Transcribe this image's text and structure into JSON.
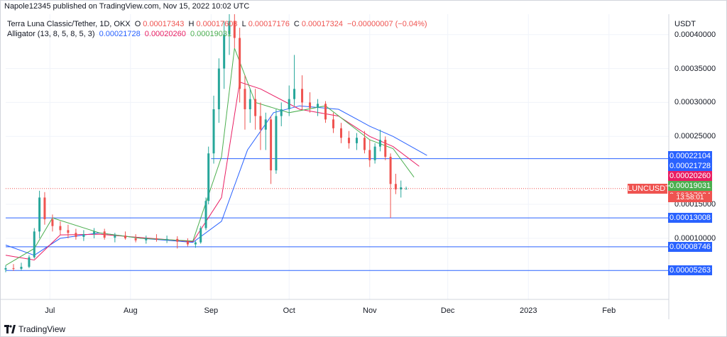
{
  "header": {
    "published": "Napole12345 published on TradingView.com, Nov 15, 2022 10:02 UTC"
  },
  "legend": {
    "symbol": "Terra Luna Classic/Tether, 1D, OKX",
    "open_label": "O",
    "open": "0.00017343",
    "high_label": "H",
    "high": "0.00017603",
    "low_label": "L",
    "low": "0.00017176",
    "close_label": "C",
    "close": "0.00017324",
    "change": "−0.00000007 (−0.04%)",
    "indicator": "Alligator (13, 8, 5, 8, 5, 3)",
    "jaw": "0.00021728",
    "teeth": "0.00020260",
    "lips": "0.00019031"
  },
  "axis": {
    "currency": "USDT"
  },
  "footer": {
    "brand": "TradingView"
  },
  "colors": {
    "up": "#26a69a",
    "down": "#ef5350",
    "jaw": "#2962ff",
    "teeth": "#e91e63",
    "lips": "#4caf50",
    "hline": "#2962ff"
  },
  "chart_data": {
    "type": "candlestick",
    "title": "Terra Luna Classic/Tether, 1D, OKX",
    "ylim": [
      1e-05,
      0.00043
    ],
    "y_ticks": [
      "0.00040000",
      "0.00035000",
      "0.00030000",
      "0.00025000",
      "0.00015000",
      "0.00010000"
    ],
    "y_tick_values": [
      0.0004,
      0.00035,
      0.0003,
      0.00025,
      0.00015,
      0.0001
    ],
    "x_ticks": [
      "Jul",
      "Aug",
      "Sep",
      "Oct",
      "Nov",
      "Dec",
      "2023",
      "Feb"
    ],
    "x_tick_dates": [
      "2022-07-01",
      "2022-08-01",
      "2022-09-01",
      "2022-10-01",
      "2022-11-01",
      "2022-12-01",
      "2023-01-01",
      "2023-02-01"
    ],
    "date_range": [
      "2022-06-14",
      "2023-02-24"
    ],
    "candles": [
      [
        "2022-06-14",
        5.4e-05,
        6e-05,
        5e-05,
        5.6e-05
      ],
      [
        "2022-06-17",
        5.6e-05,
        6.2e-05,
        5.2e-05,
        5.5e-05
      ],
      [
        "2022-06-20",
        5.5e-05,
        6.4e-05,
        5.3e-05,
        5.8e-05
      ],
      [
        "2022-06-23",
        5.8e-05,
        7.5e-05,
        5.6e-05,
        7.2e-05
      ],
      [
        "2022-06-25",
        7.2e-05,
        0.000115,
        7e-05,
        0.00011
      ],
      [
        "2022-06-27",
        0.00011,
        0.00017,
        0.0001,
        0.00016
      ],
      [
        "2022-06-29",
        0.00016,
        0.000168,
        0.00012,
        0.000128
      ],
      [
        "2022-07-02",
        0.000128,
        0.000135,
        0.00011,
        0.000118
      ],
      [
        "2022-07-05",
        0.000118,
        0.000125,
        0.000105,
        0.000112
      ],
      [
        "2022-07-08",
        0.000112,
        0.00012,
        0.0001,
        0.000108
      ],
      [
        "2022-07-11",
        0.000108,
        0.000114,
        9.8e-05,
        0.000102
      ],
      [
        "2022-07-14",
        0.000102,
        0.000112,
        9.6e-05,
        0.000106
      ],
      [
        "2022-07-18",
        0.000106,
        0.000115,
        0.0001,
        0.00011
      ],
      [
        "2022-07-22",
        0.00011,
        0.000114,
        9.8e-05,
        0.000101
      ],
      [
        "2022-07-26",
        0.000101,
        0.000108,
        9.4e-05,
        0.000104
      ],
      [
        "2022-07-30",
        0.000104,
        0.00011,
        9.8e-05,
        0.0001
      ],
      [
        "2022-08-03",
        0.0001,
        0.000106,
        9.4e-05,
        9.7e-05
      ],
      [
        "2022-08-07",
        9.7e-05,
        0.000104,
        9.2e-05,
        0.0001
      ],
      [
        "2022-08-11",
        0.0001,
        0.000106,
        9.5e-05,
        9.8e-05
      ],
      [
        "2022-08-15",
        9.8e-05,
        0.000104,
        9.3e-05,
        9.9e-05
      ],
      [
        "2022-08-19",
        9.9e-05,
        0.000103,
        8.5e-05,
        9.5e-05
      ],
      [
        "2022-08-23",
        9.5e-05,
        0.0001,
        8.8e-05,
        9.1e-05
      ],
      [
        "2022-08-26",
        9.1e-05,
        9.6e-05,
        8.6e-05,
        9.4e-05
      ],
      [
        "2022-08-28",
        9.4e-05,
        0.000118,
        9.2e-05,
        0.000115
      ],
      [
        "2022-08-30",
        0.000115,
        0.00016,
        0.000112,
        0.000155
      ],
      [
        "2022-08-31",
        0.000155,
        0.000235,
        0.00015,
        0.000225
      ],
      [
        "2022-09-02",
        0.000225,
        0.00031,
        0.00021,
        0.00029
      ],
      [
        "2022-09-04",
        0.00029,
        0.000365,
        0.00027,
        0.00035
      ],
      [
        "2022-09-06",
        0.00035,
        0.00042,
        0.00032,
        0.0004
      ],
      [
        "2022-09-08",
        0.0004,
        0.00043,
        0.00037,
        0.00042
      ],
      [
        "2022-09-10",
        0.00042,
        0.00043,
        0.00038,
        0.000395
      ],
      [
        "2022-09-12",
        0.000395,
        0.00041,
        0.0003,
        0.00032
      ],
      [
        "2022-09-14",
        0.00032,
        0.00034,
        0.00026,
        0.00029
      ],
      [
        "2022-09-16",
        0.00029,
        0.00032,
        0.00027,
        0.000305
      ],
      [
        "2022-09-18",
        0.000305,
        0.00032,
        0.00026,
        0.00028
      ],
      [
        "2022-09-20",
        0.00028,
        0.0003,
        0.00023,
        0.00026
      ],
      [
        "2022-09-22",
        0.00026,
        0.000285,
        0.00023,
        0.000275
      ],
      [
        "2022-09-24",
        0.000275,
        0.00028,
        0.00018,
        0.0002
      ],
      [
        "2022-09-26",
        0.0002,
        0.00029,
        0.000195,
        0.00028
      ],
      [
        "2022-09-28",
        0.00028,
        0.0003,
        0.000265,
        0.00029
      ],
      [
        "2022-10-01",
        0.00029,
        0.000325,
        0.00028,
        0.000305
      ],
      [
        "2022-10-03",
        0.000305,
        0.00037,
        0.000295,
        0.00032
      ],
      [
        "2022-10-06",
        0.00032,
        0.00034,
        0.00029,
        0.0003
      ],
      [
        "2022-10-09",
        0.0003,
        0.000315,
        0.000285,
        0.000292
      ],
      [
        "2022-10-12",
        0.000292,
        0.000305,
        0.00028,
        0.000298
      ],
      [
        "2022-10-15",
        0.000298,
        0.000302,
        0.00027,
        0.000275
      ],
      [
        "2022-10-18",
        0.000275,
        0.000285,
        0.000255,
        0.000262
      ],
      [
        "2022-10-21",
        0.000262,
        0.00027,
        0.00024,
        0.000248
      ],
      [
        "2022-10-24",
        0.000248,
        0.000258,
        0.000232,
        0.00024
      ],
      [
        "2022-10-27",
        0.00024,
        0.000255,
        0.00023,
        0.000248
      ],
      [
        "2022-10-30",
        0.000248,
        0.000258,
        0.000225,
        0.00023
      ],
      [
        "2022-11-01",
        0.00023,
        0.000245,
        0.000205,
        0.000215
      ],
      [
        "2022-11-03",
        0.000215,
        0.00024,
        0.00021,
        0.000235
      ],
      [
        "2022-11-05",
        0.000235,
        0.00026,
        0.000228,
        0.000245
      ],
      [
        "2022-11-07",
        0.000245,
        0.00025,
        0.000215,
        0.00022
      ],
      [
        "2022-11-09",
        0.00022,
        0.000225,
        0.00013,
        0.00018
      ],
      [
        "2022-11-11",
        0.00018,
        0.000195,
        0.000165,
        0.000172
      ],
      [
        "2022-11-13",
        0.000172,
        0.000185,
        0.00016,
        0.000175
      ],
      [
        "2022-11-15",
        0.000173,
        0.000176,
        0.000172,
        0.000173
      ]
    ],
    "alligator": {
      "jaw": {
        "name": "Jaw",
        "points": [
          [
            "2022-06-14",
            9e-05
          ],
          [
            "2022-06-25",
            7.5e-05
          ],
          [
            "2022-07-05",
            0.0001
          ],
          [
            "2022-07-20",
            0.000108
          ],
          [
            "2022-08-05",
            0.0001
          ],
          [
            "2022-08-25",
            9.4e-05
          ],
          [
            "2022-09-05",
            0.000125
          ],
          [
            "2022-09-15",
            0.00023
          ],
          [
            "2022-09-25",
            0.000285
          ],
          [
            "2022-10-05",
            0.000295
          ],
          [
            "2022-10-20",
            0.00029
          ],
          [
            "2022-11-01",
            0.000265
          ],
          [
            "2022-11-10",
            0.00025
          ],
          [
            "2022-11-23",
            0.000222
          ]
        ]
      },
      "teeth": {
        "name": "Teeth",
        "points": [
          [
            "2022-06-14",
            7.5e-05
          ],
          [
            "2022-06-25",
            6.8e-05
          ],
          [
            "2022-07-05",
            0.000105
          ],
          [
            "2022-07-20",
            0.000106
          ],
          [
            "2022-08-05",
            0.000101
          ],
          [
            "2022-08-25",
            9.5e-05
          ],
          [
            "2022-09-05",
            0.00016
          ],
          [
            "2022-09-12",
            0.00033
          ],
          [
            "2022-09-20",
            0.00032
          ],
          [
            "2022-10-05",
            0.00029
          ],
          [
            "2022-10-20",
            0.00028
          ],
          [
            "2022-11-01",
            0.00025
          ],
          [
            "2022-11-10",
            0.000235
          ],
          [
            "2022-11-20",
            0.000206
          ]
        ]
      },
      "lips": {
        "name": "Lips",
        "points": [
          [
            "2022-06-14",
            6e-05
          ],
          [
            "2022-06-25",
            8.5e-05
          ],
          [
            "2022-07-02",
            0.00013
          ],
          [
            "2022-07-20",
            0.000108
          ],
          [
            "2022-08-05",
            0.0001
          ],
          [
            "2022-08-25",
            9.6e-05
          ],
          [
            "2022-09-05",
            0.00022
          ],
          [
            "2022-09-10",
            0.00038
          ],
          [
            "2022-09-18",
            0.0003
          ],
          [
            "2022-10-01",
            0.000285
          ],
          [
            "2022-10-15",
            0.000295
          ],
          [
            "2022-11-01",
            0.000245
          ],
          [
            "2022-11-10",
            0.000232
          ],
          [
            "2022-11-18",
            0.00019
          ]
        ]
      }
    },
    "horizontal_lines": [
      {
        "value": 0.00021728,
        "label": "0.00021728",
        "start": "2022-09-01"
      },
      {
        "value": 0.00013008,
        "label": "0.00013008",
        "start": "2022-06-14"
      },
      {
        "value": 8.746e-05,
        "label": "0.00008746",
        "start": "2022-06-14"
      },
      {
        "value": 5.263e-05,
        "label": "0.00005263",
        "start": "2022-06-14"
      }
    ],
    "price_boxes": [
      {
        "value": 0.00022104,
        "label": "0.00022104",
        "color": "#2962ff"
      },
      {
        "value": 0.00021728,
        "label": "0.00021728",
        "color": "#2962ff"
      },
      {
        "value": 0.0002026,
        "label": "0.00020260",
        "color": "#e91e63"
      },
      {
        "value": 0.00019031,
        "label": "0.00019031",
        "color": "#4caf50"
      },
      {
        "value": 0.00017324,
        "label": "0.00017324",
        "color": "#ef5350"
      },
      {
        "value": 0.00013008,
        "label": "0.00013008",
        "color": "#2962ff"
      },
      {
        "value": 8.746e-05,
        "label": "0.00008746",
        "color": "#2962ff"
      },
      {
        "value": 5.263e-05,
        "label": "0.00005263",
        "color": "#2962ff"
      }
    ],
    "symbol_label": "LUNCUSDT",
    "countdown": "13:58:01",
    "last_price": 0.00017324
  }
}
